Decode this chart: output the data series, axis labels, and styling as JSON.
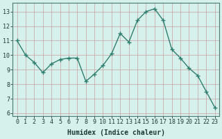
{
  "x": [
    0,
    1,
    2,
    3,
    4,
    5,
    6,
    7,
    8,
    9,
    10,
    11,
    12,
    13,
    14,
    15,
    16,
    17,
    18,
    19,
    20,
    21,
    22,
    23
  ],
  "y": [
    11.0,
    10.0,
    9.5,
    8.8,
    9.4,
    9.7,
    9.8,
    9.8,
    8.2,
    8.7,
    9.3,
    10.1,
    11.5,
    10.9,
    12.4,
    13.0,
    13.2,
    12.4,
    10.4,
    9.8,
    9.1,
    8.6,
    7.5,
    6.4
  ],
  "xlabel": "Humidex (Indice chaleur)",
  "line_color": "#2e7d6e",
  "marker": "+",
  "background_color": "#d6f0eb",
  "grid_color": "#c8a0a0",
  "ylim": [
    5.8,
    13.6
  ],
  "xlim": [
    -0.5,
    23.5
  ],
  "yticks": [
    6,
    7,
    8,
    9,
    10,
    11,
    12,
    13
  ],
  "xticks": [
    0,
    1,
    2,
    3,
    4,
    5,
    6,
    7,
    8,
    9,
    10,
    11,
    12,
    13,
    14,
    15,
    16,
    17,
    18,
    19,
    20,
    21,
    22,
    23
  ],
  "tick_color": "#1a3a38",
  "spine_color": "#4a7a74",
  "xlabel_fontsize": 7,
  "tick_fontsize": 6,
  "linewidth": 1.0,
  "markersize": 4,
  "marker_linewidth": 1.0
}
